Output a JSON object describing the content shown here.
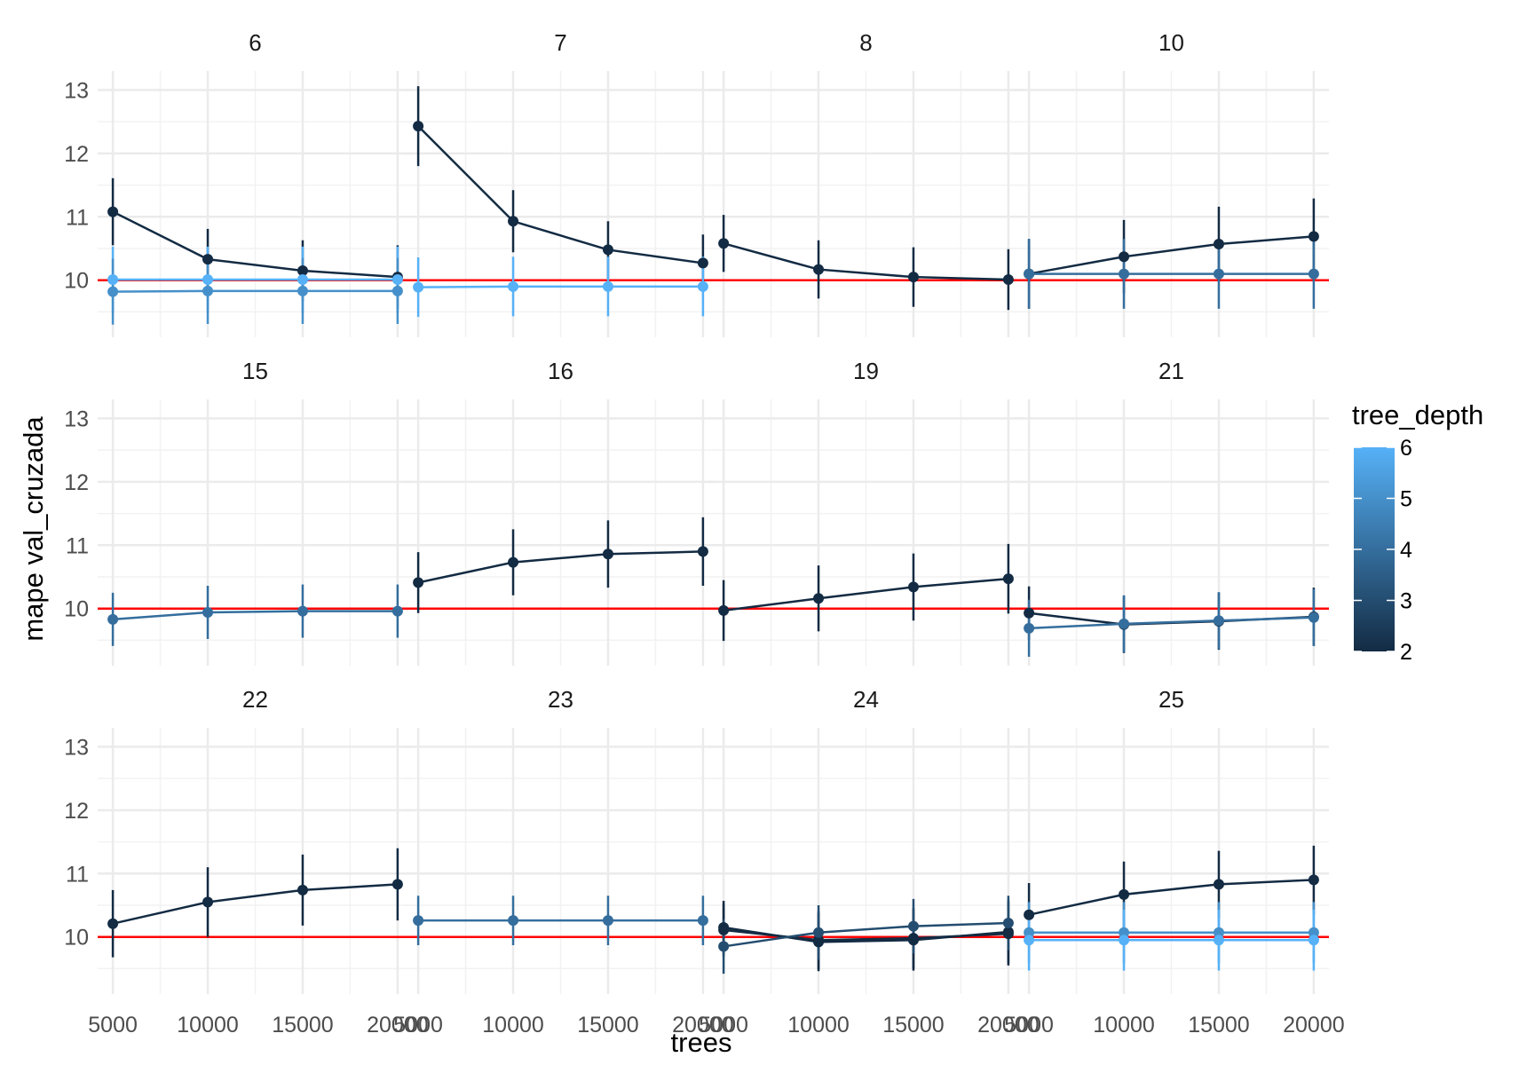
{
  "chart_data": {
    "type": "line",
    "facet_variable": "mtry",
    "xlabel": "trees",
    "ylabel": "mape val_cruzada",
    "x_ticks": [
      5000,
      10000,
      15000,
      20000
    ],
    "y_ticks": [
      10,
      11,
      12,
      13
    ],
    "xlim": [
      4200,
      20800
    ],
    "ylim": [
      9.1,
      13.3
    ],
    "reference_line": {
      "y": 10,
      "color": "#ff0000"
    },
    "grid": true,
    "legend": {
      "title": "tree_depth",
      "placement": "right",
      "type": "continuous",
      "min": 2,
      "max": 6,
      "ticks": [
        2,
        3,
        4,
        5,
        6
      ],
      "low_color": "#132B43",
      "high_color": "#56B1F7"
    },
    "facets": [
      {
        "label": "6",
        "series": [
          {
            "tree_depth": 2,
            "x": [
              5000,
              10000,
              15000,
              20000
            ],
            "y": [
              11.08,
              10.33,
              10.15,
              10.05
            ],
            "err": [
              0.53,
              0.48,
              0.48,
              0.5
            ]
          },
          {
            "tree_depth": 6,
            "x": [
              5000,
              10000,
              15000,
              20000
            ],
            "y": [
              10.01,
              10.01,
              10.01,
              10.01
            ],
            "err": [
              0.52,
              0.52,
              0.52,
              0.52
            ]
          },
          {
            "tree_depth": 5,
            "x": [
              5000,
              10000,
              15000,
              20000
            ],
            "y": [
              9.82,
              9.83,
              9.83,
              9.83
            ],
            "err": [
              0.52,
              0.52,
              0.52,
              0.52
            ]
          }
        ]
      },
      {
        "label": "7",
        "series": [
          {
            "tree_depth": 2,
            "x": [
              5000,
              10000,
              15000,
              20000
            ],
            "y": [
              12.43,
              10.93,
              10.48,
              10.27
            ],
            "err": [
              0.63,
              0.49,
              0.45,
              0.45
            ]
          },
          {
            "tree_depth": 6,
            "x": [
              5000,
              10000,
              15000,
              20000
            ],
            "y": [
              9.89,
              9.9,
              9.9,
              9.9
            ],
            "err": [
              0.47,
              0.47,
              0.47,
              0.47
            ]
          }
        ]
      },
      {
        "label": "8",
        "series": [
          {
            "tree_depth": 2,
            "x": [
              5000,
              10000,
              15000,
              20000
            ],
            "y": [
              10.58,
              10.17,
              10.05,
              10.01
            ],
            "err": [
              0.45,
              0.46,
              0.47,
              0.48
            ]
          }
        ]
      },
      {
        "label": "10",
        "series": [
          {
            "tree_depth": 2,
            "x": [
              5000,
              10000,
              15000,
              20000
            ],
            "y": [
              10.1,
              10.37,
              10.57,
              10.69
            ],
            "err": [
              0.55,
              0.58,
              0.59,
              0.6
            ]
          },
          {
            "tree_depth": 4,
            "x": [
              5000,
              10000,
              15000,
              20000
            ],
            "y": [
              10.1,
              10.1,
              10.1,
              10.1
            ],
            "err": [
              0.55,
              0.55,
              0.55,
              0.55
            ]
          }
        ]
      },
      {
        "label": "15",
        "series": [
          {
            "tree_depth": 4,
            "x": [
              5000,
              10000,
              15000,
              20000
            ],
            "y": [
              9.83,
              9.94,
              9.96,
              9.96
            ],
            "err": [
              0.42,
              0.42,
              0.42,
              0.42
            ]
          }
        ]
      },
      {
        "label": "16",
        "series": [
          {
            "tree_depth": 2,
            "x": [
              5000,
              10000,
              15000,
              20000
            ],
            "y": [
              10.41,
              10.73,
              10.86,
              10.9
            ],
            "err": [
              0.48,
              0.52,
              0.53,
              0.54
            ]
          }
        ]
      },
      {
        "label": "19",
        "series": [
          {
            "tree_depth": 2,
            "x": [
              5000,
              10000,
              15000,
              20000
            ],
            "y": [
              9.97,
              10.16,
              10.34,
              10.47
            ],
            "err": [
              0.48,
              0.52,
              0.53,
              0.55
            ]
          }
        ]
      },
      {
        "label": "21",
        "series": [
          {
            "tree_depth": 2,
            "x": [
              5000,
              10000,
              15000,
              20000
            ],
            "y": [
              9.93,
              9.75,
              9.8,
              9.87
            ],
            "err": [
              0.42,
              0.45,
              0.45,
              0.46
            ]
          },
          {
            "tree_depth": 4,
            "x": [
              5000,
              10000,
              15000,
              20000
            ],
            "y": [
              9.69,
              9.76,
              9.81,
              9.86
            ],
            "err": [
              0.45,
              0.45,
              0.45,
              0.45
            ]
          }
        ]
      },
      {
        "label": "22",
        "series": [
          {
            "tree_depth": 2,
            "x": [
              5000,
              10000,
              15000,
              20000
            ],
            "y": [
              10.21,
              10.55,
              10.74,
              10.83
            ],
            "err": [
              0.53,
              0.55,
              0.56,
              0.57
            ]
          }
        ]
      },
      {
        "label": "23",
        "series": [
          {
            "tree_depth": 4,
            "x": [
              5000,
              10000,
              15000,
              20000
            ],
            "y": [
              10.26,
              10.26,
              10.26,
              10.26
            ],
            "err": [
              0.39,
              0.39,
              0.39,
              0.39
            ]
          }
        ]
      },
      {
        "label": "24",
        "series": [
          {
            "tree_depth": 2,
            "x": [
              5000,
              10000,
              15000,
              20000
            ],
            "y": [
              10.15,
              9.92,
              9.95,
              10.08
            ],
            "err": [
              0.42,
              0.46,
              0.48,
              0.5
            ]
          },
          {
            "tree_depth": 2,
            "x": [
              5000,
              10000,
              15000,
              20000
            ],
            "y": [
              10.11,
              9.95,
              9.98,
              10.05
            ],
            "err": [
              0.42,
              0.46,
              0.48,
              0.5
            ]
          },
          {
            "tree_depth": 3,
            "x": [
              5000,
              10000,
              15000,
              20000
            ],
            "y": [
              9.85,
              10.07,
              10.17,
              10.22
            ],
            "err": [
              0.43,
              0.43,
              0.43,
              0.43
            ]
          }
        ]
      },
      {
        "label": "25",
        "series": [
          {
            "tree_depth": 2,
            "x": [
              5000,
              10000,
              15000,
              20000
            ],
            "y": [
              10.35,
              10.67,
              10.83,
              10.9
            ],
            "err": [
              0.5,
              0.52,
              0.53,
              0.54
            ]
          },
          {
            "tree_depth": 5,
            "x": [
              5000,
              10000,
              15000,
              20000
            ],
            "y": [
              10.07,
              10.07,
              10.07,
              10.07
            ],
            "err": [
              0.48,
              0.48,
              0.48,
              0.48
            ]
          },
          {
            "tree_depth": 6,
            "x": [
              5000,
              10000,
              15000,
              20000
            ],
            "y": [
              9.95,
              9.95,
              9.95,
              9.95
            ],
            "err": [
              0.48,
              0.48,
              0.48,
              0.48
            ]
          }
        ]
      }
    ]
  }
}
